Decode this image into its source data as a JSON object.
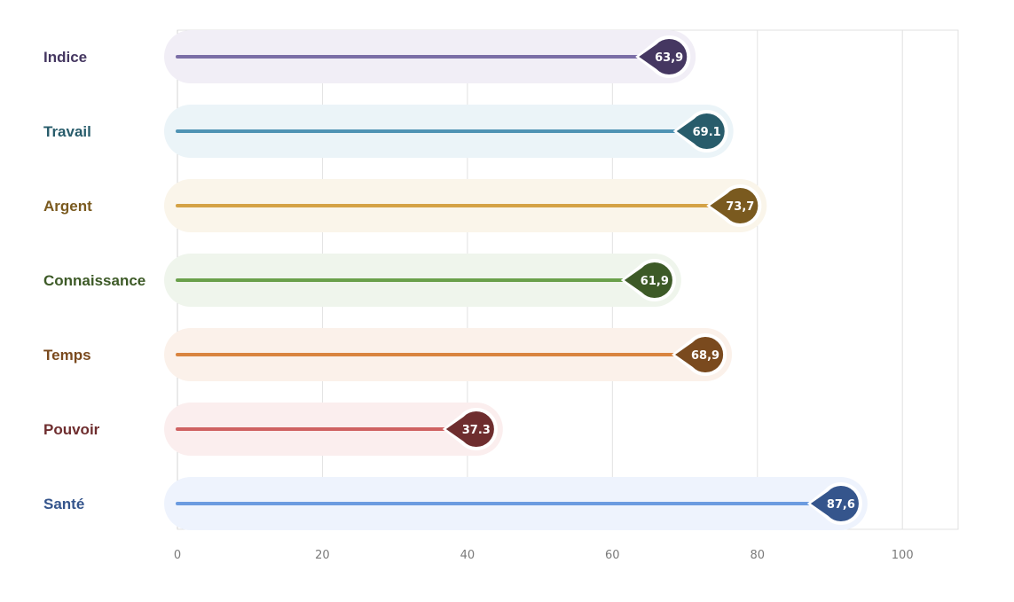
{
  "chart_data": {
    "type": "bar",
    "title": "",
    "xlabel": "",
    "ylabel": "",
    "xlim": [
      0,
      108
    ],
    "ticks": [
      0,
      20,
      40,
      60,
      80,
      100
    ],
    "grid": true,
    "categories": [
      "Indice",
      "Travail",
      "Argent",
      "Connaissance",
      "Temps",
      "Pouvoir",
      "Santé"
    ],
    "values": [
      63.9,
      69.1,
      73.7,
      61.9,
      68.9,
      37.3,
      87.6
    ],
    "value_labels": [
      "63,9",
      "69.1",
      "73,7",
      "61,9",
      "68,9",
      "37.3",
      "87,6"
    ],
    "colors": {
      "line": [
        "#7b6ea6",
        "#4f93b4",
        "#d4a245",
        "#6aa04b",
        "#d9843f",
        "#cf6262",
        "#6b9be0"
      ],
      "marker": [
        "#453761",
        "#285c6b",
        "#7a5a1f",
        "#3d5a27",
        "#7a4a1e",
        "#6e2d2e",
        "#35558c"
      ],
      "label": [
        "#453761",
        "#285c6b",
        "#7a5a1f",
        "#3d5a27",
        "#7a4a1e",
        "#6e2d2e",
        "#35558c"
      ],
      "band": [
        "#f1eef6",
        "#ebf4f8",
        "#faf5ea",
        "#eff5ec",
        "#fbf1ea",
        "#fbeeee",
        "#eef3fd"
      ]
    }
  }
}
